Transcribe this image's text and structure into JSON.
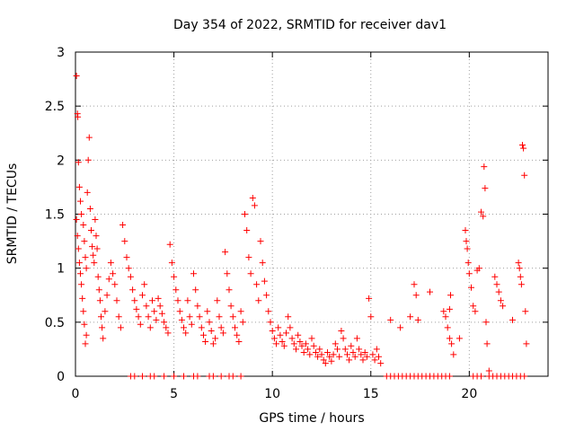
{
  "chart_data": {
    "type": "scatter",
    "title": "Day 354 of 2022, SRMTID for receiver dav1",
    "xlabel": "GPS time / hours",
    "ylabel": "SRMTID / TECUs",
    "xlim": [
      0,
      24
    ],
    "ylim": [
      0,
      3
    ],
    "xticks": [
      0,
      5,
      10,
      15,
      20
    ],
    "xtick_labels": [
      "0",
      "5",
      "10",
      "15",
      "20"
    ],
    "yticks": [
      0,
      0.5,
      1,
      1.5,
      2,
      2.5,
      3
    ],
    "ytick_labels": [
      "0",
      "0.5",
      "1",
      "1.5",
      "2",
      "2.5",
      "3"
    ],
    "grid": true,
    "marker": "+",
    "color": "#ff0000",
    "series": [
      {
        "name": "dav1",
        "points": [
          [
            0.05,
            2.78
          ],
          [
            0.1,
            2.43
          ],
          [
            0.12,
            2.4
          ],
          [
            0.15,
            1.98
          ],
          [
            0.2,
            1.75
          ],
          [
            0.25,
            1.62
          ],
          [
            0.3,
            1.5
          ],
          [
            0.05,
            1.45
          ],
          [
            0.1,
            1.3
          ],
          [
            0.15,
            1.18
          ],
          [
            0.2,
            1.05
          ],
          [
            0.25,
            0.95
          ],
          [
            0.3,
            0.85
          ],
          [
            0.35,
            0.72
          ],
          [
            0.4,
            0.6
          ],
          [
            0.45,
            0.48
          ],
          [
            0.5,
            0.3
          ],
          [
            0.55,
            0.38
          ],
          [
            0.4,
            1.4
          ],
          [
            0.45,
            1.25
          ],
          [
            0.5,
            1.1
          ],
          [
            0.55,
            1.0
          ],
          [
            0.6,
            1.7
          ],
          [
            0.65,
            2.0
          ],
          [
            0.7,
            2.21
          ],
          [
            0.75,
            1.55
          ],
          [
            0.8,
            1.35
          ],
          [
            0.85,
            1.2
          ],
          [
            0.9,
            1.12
          ],
          [
            0.95,
            1.05
          ],
          [
            1.0,
            1.45
          ],
          [
            1.05,
            1.3
          ],
          [
            1.1,
            1.18
          ],
          [
            1.15,
            0.92
          ],
          [
            1.2,
            0.8
          ],
          [
            1.25,
            0.7
          ],
          [
            1.3,
            0.55
          ],
          [
            1.35,
            0.45
          ],
          [
            1.4,
            0.35
          ],
          [
            1.5,
            0.6
          ],
          [
            1.6,
            0.75
          ],
          [
            1.7,
            0.9
          ],
          [
            1.8,
            1.05
          ],
          [
            1.9,
            0.95
          ],
          [
            2.0,
            0.85
          ],
          [
            2.1,
            0.7
          ],
          [
            2.2,
            0.55
          ],
          [
            2.3,
            0.45
          ],
          [
            2.4,
            1.4
          ],
          [
            2.5,
            1.25
          ],
          [
            2.6,
            1.1
          ],
          [
            2.7,
            1.0
          ],
          [
            2.8,
            0.92
          ],
          [
            2.9,
            0.8
          ],
          [
            3.0,
            0.7
          ],
          [
            3.1,
            0.62
          ],
          [
            3.2,
            0.55
          ],
          [
            3.3,
            0.48
          ],
          [
            3.4,
            0.75
          ],
          [
            3.5,
            0.85
          ],
          [
            3.6,
            0.65
          ],
          [
            3.7,
            0.55
          ],
          [
            3.8,
            0.45
          ],
          [
            3.9,
            0.7
          ],
          [
            4.0,
            0.6
          ],
          [
            4.1,
            0.52
          ],
          [
            4.2,
            0.72
          ],
          [
            4.3,
            0.65
          ],
          [
            4.4,
            0.58
          ],
          [
            4.5,
            0.5
          ],
          [
            4.6,
            0.45
          ],
          [
            4.7,
            0.4
          ],
          [
            4.8,
            1.22
          ],
          [
            4.9,
            1.05
          ],
          [
            5.0,
            0.92
          ],
          [
            5.1,
            0.8
          ],
          [
            5.2,
            0.7
          ],
          [
            5.3,
            0.6
          ],
          [
            5.4,
            0.52
          ],
          [
            5.5,
            0.45
          ],
          [
            5.6,
            0.4
          ],
          [
            5.7,
            0.7
          ],
          [
            5.8,
            0.55
          ],
          [
            5.9,
            0.48
          ],
          [
            6.0,
            0.95
          ],
          [
            6.1,
            0.8
          ],
          [
            6.2,
            0.65
          ],
          [
            6.3,
            0.55
          ],
          [
            6.4,
            0.45
          ],
          [
            6.5,
            0.38
          ],
          [
            6.6,
            0.32
          ],
          [
            6.7,
            0.6
          ],
          [
            6.8,
            0.5
          ],
          [
            6.9,
            0.42
          ],
          [
            7.0,
            0.3
          ],
          [
            7.1,
            0.35
          ],
          [
            7.2,
            0.7
          ],
          [
            7.3,
            0.55
          ],
          [
            7.4,
            0.45
          ],
          [
            7.5,
            0.4
          ],
          [
            7.6,
            1.15
          ],
          [
            7.7,
            0.95
          ],
          [
            7.8,
            0.8
          ],
          [
            7.9,
            0.65
          ],
          [
            8.0,
            0.55
          ],
          [
            8.1,
            0.45
          ],
          [
            8.2,
            0.38
          ],
          [
            8.3,
            0.32
          ],
          [
            8.4,
            0.6
          ],
          [
            8.5,
            0.5
          ],
          [
            8.6,
            1.5
          ],
          [
            8.7,
            1.35
          ],
          [
            8.8,
            1.1
          ],
          [
            8.9,
            0.95
          ],
          [
            9.0,
            1.65
          ],
          [
            9.1,
            1.58
          ],
          [
            9.2,
            0.85
          ],
          [
            9.3,
            0.7
          ],
          [
            9.4,
            1.25
          ],
          [
            9.5,
            1.05
          ],
          [
            9.6,
            0.88
          ],
          [
            9.7,
            0.75
          ],
          [
            9.8,
            0.6
          ],
          [
            9.9,
            0.5
          ],
          [
            10.0,
            0.42
          ],
          [
            10.1,
            0.35
          ],
          [
            10.2,
            0.3
          ],
          [
            10.3,
            0.45
          ],
          [
            10.4,
            0.38
          ],
          [
            10.5,
            0.32
          ],
          [
            10.6,
            0.28
          ],
          [
            10.7,
            0.4
          ],
          [
            10.8,
            0.55
          ],
          [
            10.9,
            0.45
          ],
          [
            11.0,
            0.35
          ],
          [
            11.1,
            0.3
          ],
          [
            11.2,
            0.25
          ],
          [
            11.3,
            0.38
          ],
          [
            11.4,
            0.32
          ],
          [
            11.5,
            0.28
          ],
          [
            11.6,
            0.22
          ],
          [
            11.7,
            0.3
          ],
          [
            11.8,
            0.25
          ],
          [
            11.9,
            0.2
          ],
          [
            12.0,
            0.35
          ],
          [
            12.1,
            0.28
          ],
          [
            12.2,
            0.22
          ],
          [
            12.3,
            0.18
          ],
          [
            12.4,
            0.25
          ],
          [
            12.5,
            0.2
          ],
          [
            12.6,
            0.15
          ],
          [
            12.7,
            0.12
          ],
          [
            12.8,
            0.22
          ],
          [
            12.9,
            0.18
          ],
          [
            13.0,
            0.14
          ],
          [
            13.1,
            0.2
          ],
          [
            13.2,
            0.3
          ],
          [
            13.3,
            0.25
          ],
          [
            13.4,
            0.18
          ],
          [
            13.5,
            0.42
          ],
          [
            13.6,
            0.35
          ],
          [
            13.7,
            0.25
          ],
          [
            13.8,
            0.2
          ],
          [
            13.9,
            0.15
          ],
          [
            14.0,
            0.28
          ],
          [
            14.1,
            0.22
          ],
          [
            14.2,
            0.18
          ],
          [
            14.3,
            0.35
          ],
          [
            14.4,
            0.25
          ],
          [
            14.5,
            0.2
          ],
          [
            14.6,
            0.15
          ],
          [
            14.7,
            0.22
          ],
          [
            14.8,
            0.18
          ],
          [
            14.9,
            0.72
          ],
          [
            15.0,
            0.55
          ],
          [
            15.1,
            0.2
          ],
          [
            15.2,
            0.15
          ],
          [
            15.3,
            0.25
          ],
          [
            15.4,
            0.18
          ],
          [
            15.5,
            0.12
          ],
          [
            16.0,
            0.52
          ],
          [
            16.5,
            0.45
          ],
          [
            17.0,
            0.55
          ],
          [
            17.2,
            0.85
          ],
          [
            17.3,
            0.75
          ],
          [
            17.4,
            0.52
          ],
          [
            18.0,
            0.78
          ],
          [
            18.7,
            0.6
          ],
          [
            18.8,
            0.55
          ],
          [
            18.9,
            0.45
          ],
          [
            19.0,
            0.35
          ],
          [
            19.0,
            0.62
          ],
          [
            19.05,
            0.75
          ],
          [
            19.1,
            0.3
          ],
          [
            19.2,
            0.2
          ],
          [
            19.5,
            0.35
          ],
          [
            19.8,
            1.35
          ],
          [
            19.85,
            1.25
          ],
          [
            19.9,
            1.18
          ],
          [
            19.95,
            1.05
          ],
          [
            20.0,
            0.95
          ],
          [
            20.1,
            0.82
          ],
          [
            20.2,
            0.65
          ],
          [
            20.3,
            0.6
          ],
          [
            20.4,
            0.98
          ],
          [
            20.5,
            1.0
          ],
          [
            20.6,
            1.52
          ],
          [
            20.7,
            1.48
          ],
          [
            20.75,
            1.94
          ],
          [
            20.8,
            1.74
          ],
          [
            20.85,
            0.5
          ],
          [
            20.9,
            0.3
          ],
          [
            21.0,
            0.05
          ],
          [
            21.3,
            0.92
          ],
          [
            21.4,
            0.85
          ],
          [
            21.5,
            0.78
          ],
          [
            21.6,
            0.7
          ],
          [
            21.7,
            0.65
          ],
          [
            22.2,
            0.52
          ],
          [
            22.5,
            1.05
          ],
          [
            22.55,
            1.0
          ],
          [
            22.6,
            0.92
          ],
          [
            22.65,
            0.85
          ],
          [
            22.7,
            2.14
          ],
          [
            22.75,
            2.11
          ],
          [
            22.8,
            1.86
          ],
          [
            22.85,
            0.6
          ],
          [
            22.9,
            0.3
          ],
          [
            2.8,
            0.0
          ],
          [
            3.0,
            0.0
          ],
          [
            3.4,
            0.0
          ],
          [
            3.8,
            0.0
          ],
          [
            4.0,
            0.0
          ],
          [
            4.5,
            0.0
          ],
          [
            5.0,
            0.0
          ],
          [
            5.5,
            0.0
          ],
          [
            6.0,
            0.0
          ],
          [
            6.2,
            0.0
          ],
          [
            6.8,
            0.0
          ],
          [
            7.0,
            0.0
          ],
          [
            7.4,
            0.0
          ],
          [
            7.8,
            0.0
          ],
          [
            8.0,
            0.0
          ],
          [
            8.4,
            0.0
          ],
          [
            15.8,
            0.0
          ],
          [
            16.0,
            0.0
          ],
          [
            16.2,
            0.0
          ],
          [
            16.4,
            0.0
          ],
          [
            16.6,
            0.0
          ],
          [
            16.8,
            0.0
          ],
          [
            17.0,
            0.0
          ],
          [
            17.2,
            0.0
          ],
          [
            17.4,
            0.0
          ],
          [
            17.6,
            0.0
          ],
          [
            17.8,
            0.0
          ],
          [
            18.0,
            0.0
          ],
          [
            18.2,
            0.0
          ],
          [
            18.4,
            0.0
          ],
          [
            18.6,
            0.0
          ],
          [
            18.8,
            0.0
          ],
          [
            19.0,
            0.0
          ],
          [
            20.2,
            0.0
          ],
          [
            20.4,
            0.0
          ],
          [
            20.6,
            0.0
          ],
          [
            21.0,
            0.0
          ],
          [
            21.2,
            0.0
          ],
          [
            21.4,
            0.0
          ],
          [
            21.6,
            0.0
          ],
          [
            21.8,
            0.0
          ],
          [
            22.0,
            0.0
          ],
          [
            22.2,
            0.0
          ],
          [
            22.4,
            0.0
          ],
          [
            22.6,
            0.0
          ],
          [
            22.8,
            0.0
          ]
        ]
      }
    ]
  }
}
